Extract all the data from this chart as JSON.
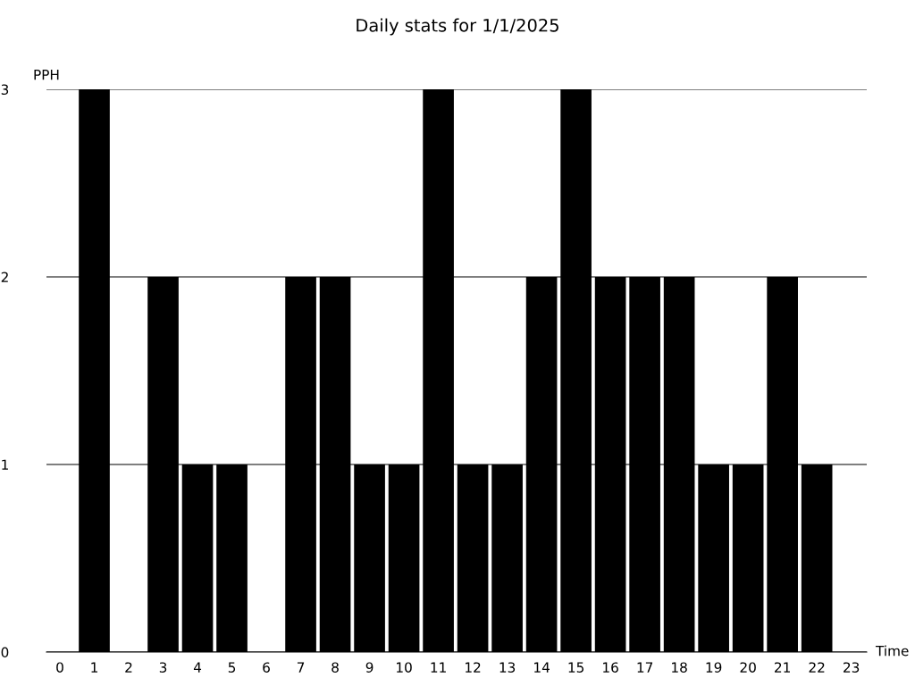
{
  "chart_data": {
    "type": "bar",
    "title": "Daily stats for 1/1/2025",
    "xlabel": "Time",
    "ylabel": "PPH",
    "categories": [
      "0",
      "1",
      "2",
      "3",
      "4",
      "5",
      "6",
      "7",
      "8",
      "9",
      "10",
      "11",
      "12",
      "13",
      "14",
      "15",
      "16",
      "17",
      "18",
      "19",
      "20",
      "21",
      "22",
      "23"
    ],
    "values": [
      0,
      3,
      0,
      2,
      1,
      1,
      0,
      2,
      2,
      1,
      1,
      3,
      1,
      1,
      2,
      3,
      2,
      2,
      2,
      1,
      1,
      2,
      1,
      0
    ],
    "color": "#000000",
    "ylim": [
      0,
      3
    ],
    "yticks": [
      0,
      1,
      2,
      3
    ],
    "grid": "y"
  }
}
